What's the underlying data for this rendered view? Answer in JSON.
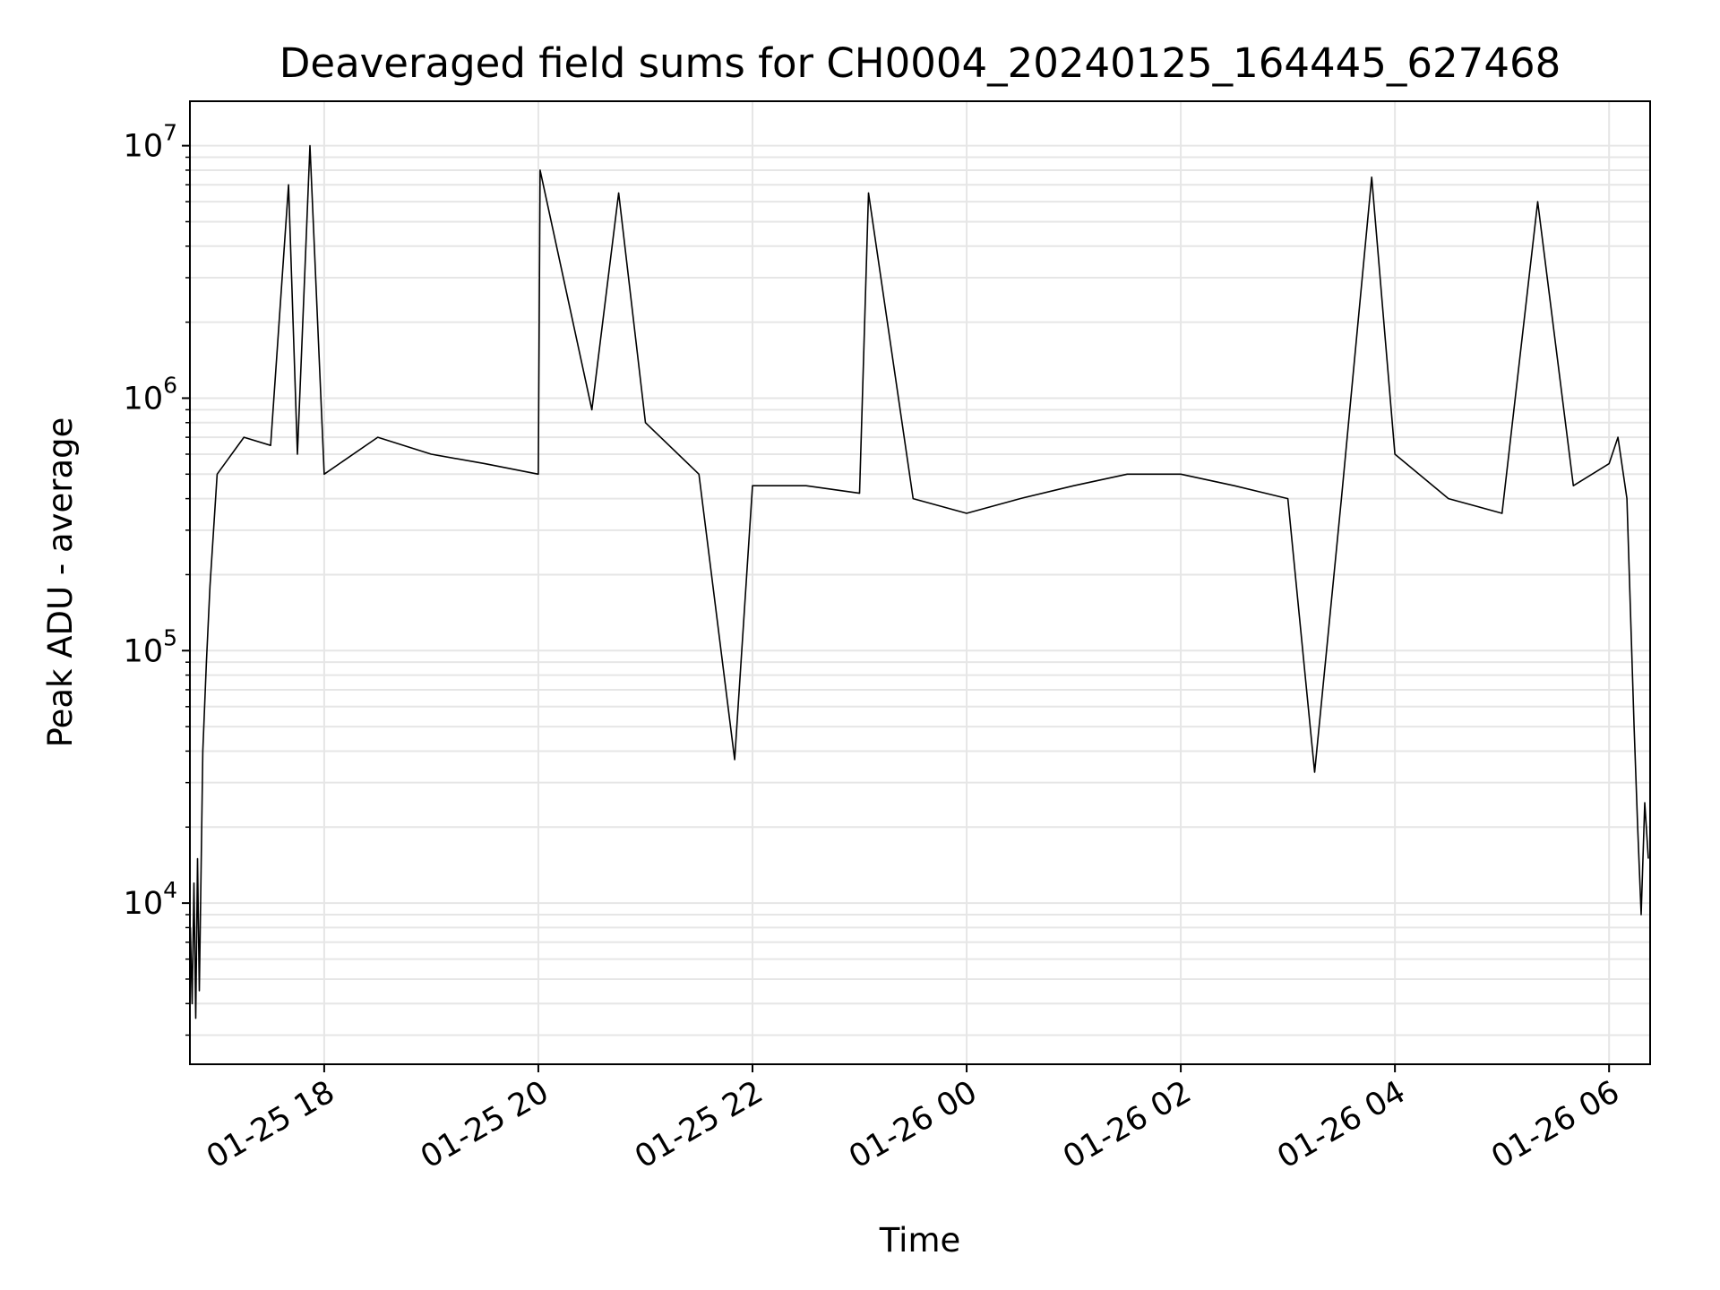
{
  "chart_data": {
    "type": "line",
    "title": "Deaveraged field sums for CH0004_20240125_164445_627468",
    "xlabel": "Time",
    "ylabel": "Peak ADU - average",
    "yscale": "log",
    "ylim": [
      2300,
      15000000
    ],
    "xlim": [
      "2024-01-25T16:44:45",
      "2024-01-26T06:23:00"
    ],
    "grid": true,
    "line_color": "#000000",
    "grid_color": "#e6e6e6",
    "x_ticks": [
      {
        "value": "2024-01-25T18:00",
        "label": "01-25 18"
      },
      {
        "value": "2024-01-25T20:00",
        "label": "01-25 20"
      },
      {
        "value": "2024-01-25T22:00",
        "label": "01-25 22"
      },
      {
        "value": "2024-01-26T00:00",
        "label": "01-26 00"
      },
      {
        "value": "2024-01-26T02:00",
        "label": "01-26 02"
      },
      {
        "value": "2024-01-26T04:00",
        "label": "01-26 04"
      },
      {
        "value": "2024-01-26T06:00",
        "label": "01-26 06"
      }
    ],
    "y_ticks": [
      {
        "value": 10000,
        "base": "10",
        "exp": "4"
      },
      {
        "value": 100000,
        "base": "10",
        "exp": "5"
      },
      {
        "value": 1000000,
        "base": "10",
        "exp": "6"
      },
      {
        "value": 10000000,
        "base": "10",
        "exp": "7"
      }
    ],
    "series": [
      {
        "points": [
          [
            "2024-01-25T16:45",
            8000
          ],
          [
            "2024-01-25T16:46",
            4000
          ],
          [
            "2024-01-25T16:47",
            12000
          ],
          [
            "2024-01-25T16:48",
            3500
          ],
          [
            "2024-01-25T16:49",
            15000
          ],
          [
            "2024-01-25T16:50",
            4500
          ],
          [
            "2024-01-25T16:52",
            40000
          ],
          [
            "2024-01-25T16:54",
            90000
          ],
          [
            "2024-01-25T16:56",
            180000
          ],
          [
            "2024-01-25T17:00",
            500000
          ],
          [
            "2024-01-25T17:15",
            700000
          ],
          [
            "2024-01-25T17:30",
            650000
          ],
          [
            "2024-01-25T17:40",
            7000000
          ],
          [
            "2024-01-25T17:45",
            600000
          ],
          [
            "2024-01-25T17:52",
            10000000
          ],
          [
            "2024-01-25T18:00",
            500000
          ],
          [
            "2024-01-25T18:30",
            700000
          ],
          [
            "2024-01-25T19:00",
            600000
          ],
          [
            "2024-01-25T19:30",
            550000
          ],
          [
            "2024-01-25T20:00",
            500000
          ],
          [
            "2024-01-25T20:01",
            8000000
          ],
          [
            "2024-01-25T20:30",
            900000
          ],
          [
            "2024-01-25T20:45",
            6500000
          ],
          [
            "2024-01-25T21:00",
            800000
          ],
          [
            "2024-01-25T21:30",
            500000
          ],
          [
            "2024-01-25T21:50",
            37000
          ],
          [
            "2024-01-25T22:00",
            450000
          ],
          [
            "2024-01-25T22:30",
            450000
          ],
          [
            "2024-01-25T23:00",
            420000
          ],
          [
            "2024-01-25T23:05",
            6500000
          ],
          [
            "2024-01-25T23:30",
            400000
          ],
          [
            "2024-01-26T00:00",
            350000
          ],
          [
            "2024-01-26T00:30",
            400000
          ],
          [
            "2024-01-26T01:00",
            450000
          ],
          [
            "2024-01-26T01:30",
            500000
          ],
          [
            "2024-01-26T02:00",
            500000
          ],
          [
            "2024-01-26T02:30",
            450000
          ],
          [
            "2024-01-26T03:00",
            400000
          ],
          [
            "2024-01-26T03:15",
            33000
          ],
          [
            "2024-01-26T03:30",
            400000
          ],
          [
            "2024-01-26T03:47",
            7500000
          ],
          [
            "2024-01-26T04:00",
            600000
          ],
          [
            "2024-01-26T04:30",
            400000
          ],
          [
            "2024-01-26T05:00",
            350000
          ],
          [
            "2024-01-26T05:20",
            6000000
          ],
          [
            "2024-01-26T05:40",
            450000
          ],
          [
            "2024-01-26T06:00",
            550000
          ],
          [
            "2024-01-26T06:05",
            700000
          ],
          [
            "2024-01-26T06:10",
            400000
          ],
          [
            "2024-01-26T06:14",
            50000
          ],
          [
            "2024-01-26T06:16",
            20000
          ],
          [
            "2024-01-26T06:18",
            9000
          ],
          [
            "2024-01-26T06:20",
            25000
          ],
          [
            "2024-01-26T06:22",
            15000
          ]
        ]
      }
    ]
  }
}
